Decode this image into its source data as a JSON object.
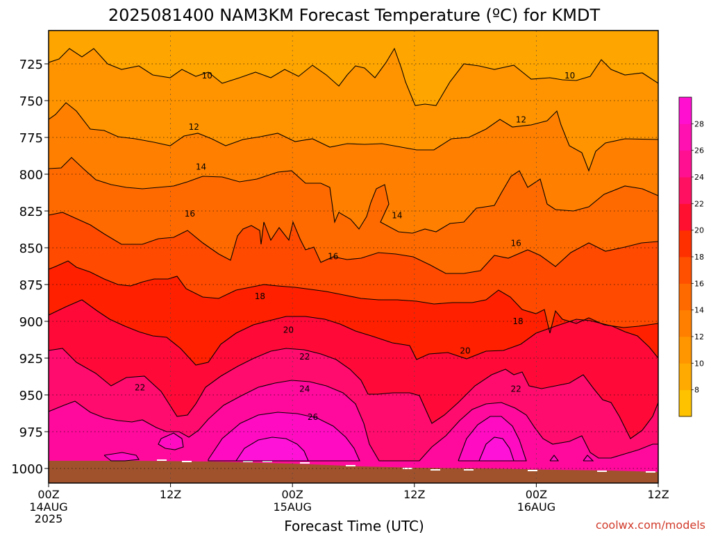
{
  "chart_data": {
    "type": "contour",
    "title": "2025081400 NAM3KM Forecast Temperature (ºC) for KMDT",
    "xlabel": "Forecast Time (UTC)",
    "ylabel": "",
    "x_ticks": [
      {
        "label": "00Z",
        "sub": [
          "14AUG",
          "2025"
        ],
        "hour": 0
      },
      {
        "label": "12Z",
        "sub": [],
        "hour": 12
      },
      {
        "label": "00Z",
        "sub": [
          "15AUG"
        ],
        "hour": 24
      },
      {
        "label": "12Z",
        "sub": [],
        "hour": 36
      },
      {
        "label": "00Z",
        "sub": [
          "16AUG"
        ],
        "hour": 48
      },
      {
        "label": "12Z",
        "sub": [],
        "hour": 60
      }
    ],
    "xlim": [
      0,
      60
    ],
    "y_ticks": [
      725,
      750,
      775,
      800,
      825,
      850,
      875,
      900,
      925,
      950,
      975,
      1000
    ],
    "ylim": [
      1010,
      700
    ],
    "grid": true,
    "colorbar": {
      "ticks": [
        8,
        10,
        12,
        14,
        16,
        18,
        20,
        22,
        24,
        26,
        28
      ],
      "colors": [
        "#ffc200",
        "#ffaa00",
        "#ff9600",
        "#ff8000",
        "#ff6a00",
        "#ff5000",
        "#ff3000",
        "#ff1030",
        "#ff1060",
        "#ff1090",
        "#ff10b0",
        "#ff10d0"
      ]
    },
    "levels": [
      10,
      12,
      14,
      16,
      18,
      20,
      22,
      24,
      26
    ],
    "fill_colors": {
      "lt10": "#ffa500",
      "10": "#ff9400",
      "12": "#ff8000",
      "14": "#ff6a00",
      "16": "#ff4a00",
      "18": "#ff2000",
      "20": "#ff0a38",
      "22": "#ff0c6e",
      "24": "#ff0a9c",
      "26": "#ff0cc2"
    },
    "isotherm_labels": [
      {
        "text": "10",
        "hour": 15.6,
        "p": 733
      },
      {
        "text": "10",
        "hour": 51.3,
        "p": 733
      },
      {
        "text": "12",
        "hour": 14.3,
        "p": 768
      },
      {
        "text": "12",
        "hour": 46.5,
        "p": 763
      },
      {
        "text": "14",
        "hour": 15.0,
        "p": 795
      },
      {
        "text": "14",
        "hour": 34.3,
        "p": 828
      },
      {
        "text": "16",
        "hour": 13.9,
        "p": 827
      },
      {
        "text": "16",
        "hour": 28.0,
        "p": 856
      },
      {
        "text": "16",
        "hour": 46.0,
        "p": 847
      },
      {
        "text": "18",
        "hour": 20.8,
        "p": 883
      },
      {
        "text": "18",
        "hour": 46.2,
        "p": 900
      },
      {
        "text": "20",
        "hour": 23.6,
        "p": 906
      },
      {
        "text": "20",
        "hour": 41.0,
        "p": 920
      },
      {
        "text": "22",
        "hour": 25.2,
        "p": 924
      },
      {
        "text": "22",
        "hour": 9.0,
        "p": 945
      },
      {
        "text": "22",
        "hour": 46.0,
        "p": 946
      },
      {
        "text": "24",
        "hour": 25.2,
        "p": 946
      },
      {
        "text": "26",
        "hour": 26.0,
        "p": 965
      }
    ],
    "ground_color": "#a0522d"
  },
  "credit": "coolwx.com/models"
}
